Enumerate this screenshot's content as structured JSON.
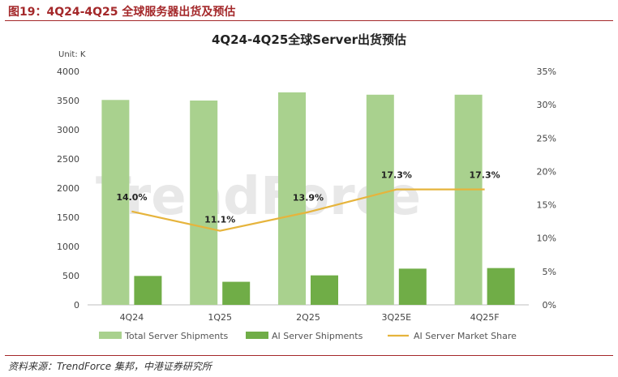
{
  "figure": {
    "title": "图19：4Q24-4Q25 全球服务器出货及预估",
    "source": "资料来源：TrendForce 集邦，中港证券研究所"
  },
  "watermark": "TrendForce",
  "chart_data": {
    "type": "bar",
    "title": "4Q24-4Q25全球Server出货预估",
    "unit_label": "Unit: K",
    "categories": [
      "4Q24",
      "1Q25",
      "2Q25",
      "3Q25E",
      "4Q25F"
    ],
    "series": [
      {
        "name": "Total Server Shipments",
        "type": "bar",
        "axis": "left",
        "color": "#a9d18e",
        "values": [
          3510,
          3500,
          3640,
          3600,
          3600
        ]
      },
      {
        "name": "AI Server Shipments",
        "type": "bar",
        "axis": "left",
        "color": "#70ad47",
        "values": [
          495,
          395,
          505,
          620,
          630
        ]
      },
      {
        "name": "AI Server Market Share",
        "type": "line",
        "axis": "right",
        "color": "#e6b43c",
        "values": [
          14.0,
          11.1,
          13.9,
          17.3,
          17.3
        ],
        "labels": [
          "14.0%",
          "11.1%",
          "13.9%",
          "17.3%",
          "17.3%"
        ]
      }
    ],
    "ylim": [
      0,
      4000
    ],
    "yticks": [
      "0",
      "500",
      "1000",
      "1500",
      "2000",
      "2500",
      "3000",
      "3500",
      "4000"
    ],
    "y2lim": [
      0,
      35
    ],
    "y2ticks": [
      "0%",
      "5%",
      "10%",
      "15%",
      "20%",
      "25%",
      "30%",
      "35%"
    ],
    "grid": false,
    "legend": "bottom"
  }
}
